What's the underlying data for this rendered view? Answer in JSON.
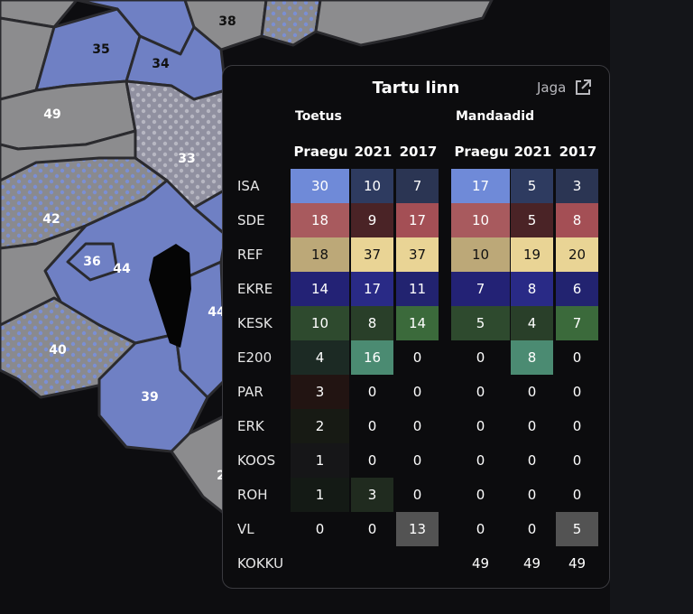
{
  "map": {
    "district_labels": [
      "38",
      "35",
      "34",
      "49",
      "33",
      "42",
      "36",
      "44",
      "44",
      "40",
      "39",
      "2"
    ]
  },
  "popup": {
    "title": "Tartu linn",
    "share_label": "Jaga",
    "share_icon": "external-link-icon",
    "groups": {
      "support": "Toetus",
      "seats": "Mandaadid"
    },
    "columns": [
      "Praegu",
      "2021",
      "2017",
      "Praegu",
      "2021",
      "2017"
    ],
    "rows": [
      {
        "party": "ISA",
        "support": [
          "30",
          "10",
          "7"
        ],
        "seats": [
          "17",
          "5",
          "3"
        ],
        "support_colors": [
          "#6f8ad8",
          "#2e3b60",
          "#2b3553"
        ],
        "seats_colors": [
          "#6f8ad8",
          "#2e3b60",
          "#2b3553"
        ]
      },
      {
        "party": "SDE",
        "support": [
          "18",
          "9",
          "17"
        ],
        "seats": [
          "10",
          "5",
          "8"
        ],
        "support_colors": [
          "#a85a5e",
          "#4a2326",
          "#a44f55"
        ],
        "seats_colors": [
          "#a85a5e",
          "#4a2326",
          "#a44f55"
        ]
      },
      {
        "party": "REF",
        "support": [
          "18",
          "37",
          "37"
        ],
        "seats": [
          "10",
          "19",
          "20"
        ],
        "support_colors": [
          "#bca878",
          "#e9d495",
          "#e9d495"
        ],
        "seats_colors": [
          "#bca878",
          "#e9d495",
          "#e9d495"
        ]
      },
      {
        "party": "EKRE",
        "support": [
          "14",
          "17",
          "11"
        ],
        "seats": [
          "7",
          "8",
          "6"
        ],
        "support_colors": [
          "#232275",
          "#292a86",
          "#222370"
        ],
        "seats_colors": [
          "#232275",
          "#292a86",
          "#222370"
        ]
      },
      {
        "party": "KESK",
        "support": [
          "10",
          "8",
          "14"
        ],
        "seats": [
          "5",
          "4",
          "7"
        ],
        "support_colors": [
          "#2e4a2e",
          "#293f29",
          "#3b6a3b"
        ],
        "seats_colors": [
          "#2e4a2e",
          "#293f29",
          "#3b6a3b"
        ]
      },
      {
        "party": "E200",
        "support": [
          "4",
          "16",
          "0"
        ],
        "seats": [
          "0",
          "8",
          "0"
        ],
        "support_colors": [
          "#1c2a24",
          "#4b8b72",
          ""
        ],
        "seats_colors": [
          "",
          "#4b8b72",
          ""
        ]
      },
      {
        "party": "PAR",
        "support": [
          "3",
          "0",
          "0"
        ],
        "seats": [
          "0",
          "0",
          "0"
        ],
        "support_colors": [
          "#221412",
          "",
          ""
        ],
        "seats_colors": [
          "",
          "",
          ""
        ]
      },
      {
        "party": "ERK",
        "support": [
          "2",
          "0",
          "0"
        ],
        "seats": [
          "0",
          "0",
          "0"
        ],
        "support_colors": [
          "#171a14",
          "",
          ""
        ],
        "seats_colors": [
          "",
          "",
          ""
        ]
      },
      {
        "party": "KOOS",
        "support": [
          "1",
          "0",
          "0"
        ],
        "seats": [
          "0",
          "0",
          "0"
        ],
        "support_colors": [
          "#161618",
          "",
          ""
        ],
        "seats_colors": [
          "",
          "",
          ""
        ]
      },
      {
        "party": "ROH",
        "support": [
          "1",
          "3",
          "0"
        ],
        "seats": [
          "0",
          "0",
          "0"
        ],
        "support_colors": [
          "#141a15",
          "#202b1f",
          ""
        ],
        "seats_colors": [
          "",
          "",
          ""
        ]
      },
      {
        "party": "VL",
        "support": [
          "0",
          "0",
          "13"
        ],
        "seats": [
          "0",
          "0",
          "5"
        ],
        "support_colors": [
          "",
          "",
          "#535353"
        ],
        "seats_colors": [
          "",
          "",
          "#535353"
        ]
      }
    ],
    "total_label": "KOKKU",
    "totals": [
      "49",
      "49",
      "49"
    ]
  }
}
